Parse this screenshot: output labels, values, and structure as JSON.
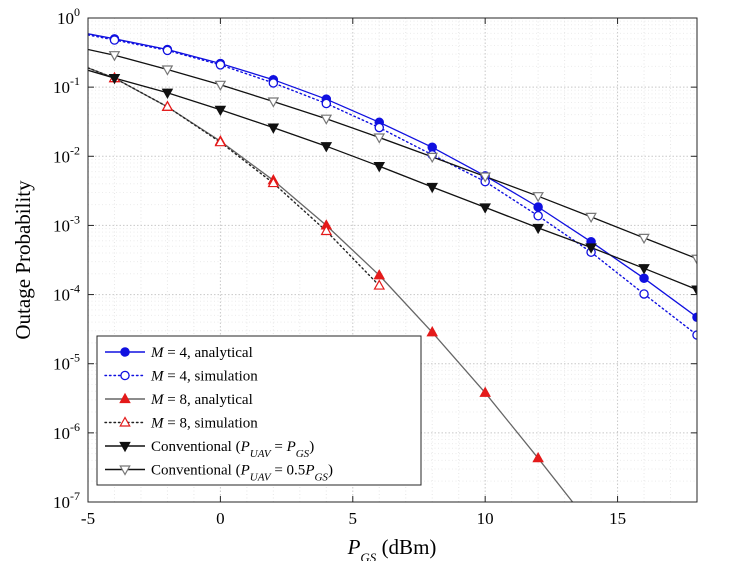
{
  "chart_data": {
    "type": "line",
    "title": "",
    "xlabel": {
      "main": "P",
      "sub": "GS",
      "unit": " (dBm)"
    },
    "ylabel": "Outage Probability",
    "xlim": [
      -5,
      18
    ],
    "ylim": [
      1e-07,
      1
    ],
    "yscale": "log",
    "grid": true,
    "legend_position": "bottom-left",
    "x_ticks": [
      -5,
      0,
      5,
      10,
      15
    ],
    "x_tick_labels": [
      "-5",
      "0",
      "5",
      "10",
      "15"
    ],
    "y_ticks": [
      {
        "base": "10",
        "exp": "0",
        "value": 1
      },
      {
        "base": "10",
        "exp": "-1",
        "value": 0.1
      },
      {
        "base": "10",
        "exp": "-2",
        "value": 0.01
      },
      {
        "base": "10",
        "exp": "-3",
        "value": 0.001
      },
      {
        "base": "10",
        "exp": "-4",
        "value": 0.0001
      },
      {
        "base": "10",
        "exp": "-5",
        "value": 1e-05
      },
      {
        "base": "10",
        "exp": "-6",
        "value": 1e-06
      },
      {
        "base": "10",
        "exp": "-7",
        "value": 1e-07
      }
    ],
    "series": [
      {
        "id": "m4-analytical",
        "name": "M = 4, analytical",
        "legend": [
          {
            "t": "M",
            "i": true
          },
          {
            "t": " = 4, analytical"
          }
        ],
        "color": "#1010e0",
        "dash": "solid",
        "marker": "circle",
        "fill": true,
        "line_x": [
          -5,
          -4,
          -2,
          0,
          2,
          4,
          6,
          8,
          10,
          12,
          14,
          16,
          18
        ],
        "line_y": [
          0.59,
          0.5,
          0.35,
          0.22,
          0.128,
          0.067,
          0.031,
          0.0135,
          0.0052,
          0.00185,
          0.00058,
          0.000172,
          4.7e-05
        ],
        "mark_x": [
          -4,
          -2,
          0,
          2,
          4,
          6,
          8,
          10,
          12,
          14,
          16,
          18
        ],
        "mark_y": [
          0.5,
          0.35,
          0.22,
          0.128,
          0.067,
          0.031,
          0.0135,
          0.0052,
          0.00185,
          0.00058,
          0.000172,
          4.7e-05
        ]
      },
      {
        "id": "m4-simulation",
        "name": "M = 4, simulation",
        "legend": [
          {
            "t": "M",
            "i": true
          },
          {
            "t": " = 4, simulation"
          }
        ],
        "color": "#1010e0",
        "dash": "dotted",
        "marker": "circle",
        "fill": false,
        "line_x": [
          -5,
          -4,
          -2,
          0,
          2,
          4,
          6,
          8,
          10,
          12,
          14,
          16,
          18
        ],
        "line_y": [
          0.57,
          0.48,
          0.34,
          0.21,
          0.115,
          0.058,
          0.026,
          0.0105,
          0.0043,
          0.00138,
          0.00041,
          0.000102,
          2.6e-05
        ],
        "mark_x": [
          -4,
          -2,
          0,
          2,
          4,
          6,
          8,
          10,
          12,
          14,
          16,
          18
        ],
        "mark_y": [
          0.48,
          0.34,
          0.21,
          0.115,
          0.058,
          0.026,
          0.0105,
          0.0043,
          0.00138,
          0.00041,
          0.000102,
          2.6e-05
        ]
      },
      {
        "id": "m8-analytical",
        "name": "M = 8, analytical",
        "legend": [
          {
            "t": "M",
            "i": true
          },
          {
            "t": " = 8, analytical"
          }
        ],
        "color": "#e41a1a",
        "dash": "solid",
        "marker": "triangle",
        "fill": true,
        "line_color": "#666666",
        "line_x": [
          -5,
          -4,
          -2,
          0,
          2,
          4,
          6,
          8,
          10,
          12,
          13.3
        ],
        "line_y": [
          0.19,
          0.135,
          0.052,
          0.0165,
          0.0045,
          0.001,
          0.00019,
          2.85e-05,
          3.8e-06,
          4.3e-07,
          1e-07
        ],
        "mark_x": [
          -4,
          -2,
          0,
          2,
          4,
          6,
          8,
          10,
          12
        ],
        "mark_y": [
          0.135,
          0.052,
          0.0165,
          0.0045,
          0.001,
          0.00019,
          2.85e-05,
          3.8e-06,
          4.3e-07
        ]
      },
      {
        "id": "m8-simulation",
        "name": "M = 8, simulation",
        "legend": [
          {
            "t": "M",
            "i": true
          },
          {
            "t": " = 8, simulation"
          }
        ],
        "color": "#e41a1a",
        "dash": "dotted",
        "marker": "triangle",
        "fill": false,
        "line_color": "#222222",
        "line_x": [
          -5,
          -4,
          -2,
          0,
          2,
          4,
          6
        ],
        "line_y": [
          0.19,
          0.135,
          0.052,
          0.016,
          0.0041,
          0.00083,
          0.000135
        ],
        "mark_x": [
          -4,
          -2,
          0,
          2,
          4,
          6
        ],
        "mark_y": [
          0.135,
          0.052,
          0.016,
          0.0041,
          0.00083,
          0.000135
        ]
      },
      {
        "id": "conventional",
        "name": "Conventional (P_UAV = P_GS)",
        "legend": [
          {
            "t": "Conventional ("
          },
          {
            "t": "P",
            "i": true
          },
          {
            "t": "UAV",
            "i": true,
            "sub": true
          },
          {
            "t": " = "
          },
          {
            "t": "P",
            "i": true
          },
          {
            "t": "GS",
            "i": true,
            "sub": true
          },
          {
            "t": ")"
          }
        ],
        "color": "#111111",
        "dash": "solid",
        "marker": "triangle-down",
        "fill": true,
        "line_x": [
          -5,
          -4,
          -2,
          0,
          2,
          4,
          6,
          8,
          10,
          12,
          14,
          16,
          18
        ],
        "line_y": [
          0.175,
          0.135,
          0.083,
          0.047,
          0.026,
          0.014,
          0.0072,
          0.0036,
          0.00182,
          0.00092,
          0.00048,
          0.00024,
          0.000118
        ],
        "mark_x": [
          -4,
          -2,
          0,
          2,
          4,
          6,
          8,
          10,
          12,
          14,
          16,
          18
        ],
        "mark_y": [
          0.135,
          0.083,
          0.047,
          0.026,
          0.014,
          0.0072,
          0.0036,
          0.00182,
          0.00092,
          0.00048,
          0.00024,
          0.000118
        ]
      },
      {
        "id": "conventional-half",
        "name": "Conventional (P_UAV = 0.5P_GS)",
        "legend": [
          {
            "t": "Conventional ("
          },
          {
            "t": "P",
            "i": true
          },
          {
            "t": "UAV",
            "i": true,
            "sub": true
          },
          {
            "t": " = 0.5"
          },
          {
            "t": "P",
            "i": true
          },
          {
            "t": "GS",
            "i": true,
            "sub": true
          },
          {
            "t": ")"
          }
        ],
        "color": "#777777",
        "dash": "solid",
        "marker": "triangle-down",
        "fill": false,
        "line_color": "#111111",
        "line_x": [
          -5,
          -4,
          -2,
          0,
          2,
          4,
          6,
          8,
          10,
          12,
          14,
          16,
          18
        ],
        "line_y": [
          0.35,
          0.29,
          0.18,
          0.108,
          0.062,
          0.035,
          0.0187,
          0.0098,
          0.0051,
          0.00265,
          0.00133,
          0.00066,
          0.00033
        ],
        "mark_x": [
          -4,
          -2,
          0,
          2,
          4,
          6,
          8,
          10,
          12,
          14,
          16,
          18
        ],
        "mark_y": [
          0.29,
          0.18,
          0.108,
          0.062,
          0.035,
          0.0187,
          0.0098,
          0.0051,
          0.00265,
          0.00133,
          0.00066,
          0.00033
        ]
      }
    ]
  }
}
